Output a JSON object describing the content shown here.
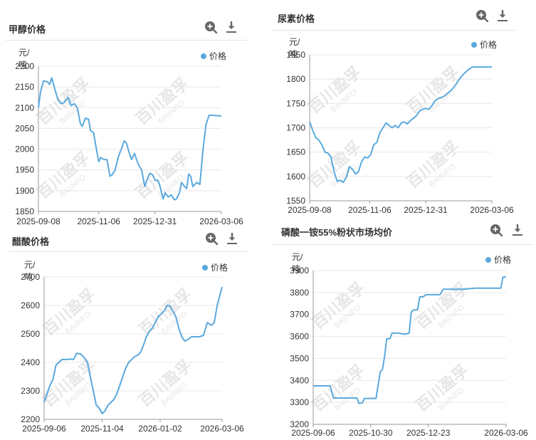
{
  "ui": {
    "icons": {
      "zoom": "magnifier-plus-icon",
      "download": "download-arrow-icon"
    },
    "colors": {
      "series": "#5aa9dd",
      "grid": "#e8e8e8",
      "axis": "#999999",
      "watermark": "#d6d6d6"
    },
    "watermark": {
      "cn": "百川盈孚",
      "en": "BAIINFO"
    }
  },
  "chart_data": [
    {
      "id": "methanol",
      "type": "line",
      "title": "甲醇价格",
      "unit": "元/吨",
      "legend": [
        "价格"
      ],
      "legend_position": "top-right",
      "grid": true,
      "ylim": [
        1850,
        2200
      ],
      "yticks": [
        1850,
        1900,
        1950,
        2000,
        2050,
        2100,
        2150,
        2200
      ],
      "xticks": [
        "2025-09-08",
        "2025-11-06",
        "2025-12-31",
        "2026-03-06"
      ],
      "x_range": [
        "2025-09-08",
        "2026-03-06"
      ],
      "series": [
        {
          "name": "价格",
          "points": [
            [
              "2025-09-08",
              2100
            ],
            [
              "2025-09-10",
              2138
            ],
            [
              "2025-09-13",
              2165
            ],
            [
              "2025-09-17",
              2162
            ],
            [
              "2025-09-19",
              2156
            ],
            [
              "2025-09-21",
              2172
            ],
            [
              "2025-09-24",
              2145
            ],
            [
              "2025-09-27",
              2120
            ],
            [
              "2025-09-30",
              2110
            ],
            [
              "2025-10-03",
              2112
            ],
            [
              "2025-10-07",
              2125
            ],
            [
              "2025-10-10",
              2105
            ],
            [
              "2025-10-13",
              2110
            ],
            [
              "2025-10-16",
              2100
            ],
            [
              "2025-10-19",
              2062
            ],
            [
              "2025-10-21",
              2055
            ],
            [
              "2025-10-24",
              2075
            ],
            [
              "2025-10-27",
              2072
            ],
            [
              "2025-10-29",
              2045
            ],
            [
              "2025-11-01",
              2040
            ],
            [
              "2025-11-03",
              2010
            ],
            [
              "2025-11-06",
              1970
            ],
            [
              "2025-11-08",
              1980
            ],
            [
              "2025-11-11",
              1975
            ],
            [
              "2025-11-14",
              1975
            ],
            [
              "2025-11-17",
              1935
            ],
            [
              "2025-11-19",
              1938
            ],
            [
              "2025-11-22",
              1950
            ],
            [
              "2025-11-25",
              1980
            ],
            [
              "2025-11-28",
              2000
            ],
            [
              "2025-12-01",
              2020
            ],
            [
              "2025-12-03",
              2015
            ],
            [
              "2025-12-06",
              1990
            ],
            [
              "2025-12-08",
              1975
            ],
            [
              "2025-12-11",
              1990
            ],
            [
              "2025-12-13",
              1975
            ],
            [
              "2025-12-15",
              1962
            ],
            [
              "2025-12-18",
              1950
            ],
            [
              "2025-12-21",
              1910
            ],
            [
              "2025-12-23",
              1925
            ],
            [
              "2025-12-26",
              1942
            ],
            [
              "2025-12-29",
              1938
            ],
            [
              "2025-12-31",
              1925
            ],
            [
              "2026-01-03",
              1925
            ],
            [
              "2026-01-05",
              1910
            ],
            [
              "2026-01-08",
              1880
            ],
            [
              "2026-01-10",
              1895
            ],
            [
              "2026-01-13",
              1885
            ],
            [
              "2026-01-16",
              1890
            ],
            [
              "2026-01-19",
              1878
            ],
            [
              "2026-01-21",
              1880
            ],
            [
              "2026-01-24",
              1895
            ],
            [
              "2026-01-26",
              1920
            ],
            [
              "2026-01-29",
              1910
            ],
            [
              "2026-01-31",
              1905
            ],
            [
              "2026-02-02",
              1940
            ],
            [
              "2026-02-04",
              1935
            ],
            [
              "2026-02-06",
              1910
            ],
            [
              "2026-02-10",
              1920
            ],
            [
              "2026-02-13",
              1915
            ],
            [
              "2026-02-16",
              2000
            ],
            [
              "2026-02-19",
              2060
            ],
            [
              "2026-02-22",
              2082
            ],
            [
              "2026-03-06",
              2080
            ]
          ]
        }
      ]
    },
    {
      "id": "urea",
      "type": "line",
      "title": "尿素价格",
      "unit": "元/吨",
      "legend": [
        "价格"
      ],
      "legend_position": "top-right",
      "grid": true,
      "ylim": [
        1550,
        1850
      ],
      "yticks": [
        1550,
        1600,
        1650,
        1700,
        1750,
        1800,
        1850
      ],
      "xticks": [
        "2025-09-08",
        "2025-11-06",
        "2025-12-31",
        "2026-03-06"
      ],
      "x_range": [
        "2025-09-08",
        "2026-03-06"
      ],
      "series": [
        {
          "name": "价格",
          "points": [
            [
              "2025-09-08",
              1712
            ],
            [
              "2025-09-11",
              1695
            ],
            [
              "2025-09-14",
              1680
            ],
            [
              "2025-09-17",
              1675
            ],
            [
              "2025-09-20",
              1665
            ],
            [
              "2025-09-23",
              1650
            ],
            [
              "2025-09-26",
              1648
            ],
            [
              "2025-09-29",
              1640
            ],
            [
              "2025-10-02",
              1610
            ],
            [
              "2025-10-05",
              1590
            ],
            [
              "2025-10-08",
              1592
            ],
            [
              "2025-10-11",
              1588
            ],
            [
              "2025-10-14",
              1598
            ],
            [
              "2025-10-17",
              1620
            ],
            [
              "2025-10-20",
              1615
            ],
            [
              "2025-10-23",
              1605
            ],
            [
              "2025-10-26",
              1610
            ],
            [
              "2025-10-29",
              1630
            ],
            [
              "2025-11-01",
              1640
            ],
            [
              "2025-11-04",
              1638
            ],
            [
              "2025-11-07",
              1645
            ],
            [
              "2025-11-10",
              1665
            ],
            [
              "2025-11-13",
              1670
            ],
            [
              "2025-11-16",
              1690
            ],
            [
              "2025-11-19",
              1700
            ],
            [
              "2025-11-22",
              1710
            ],
            [
              "2025-11-25",
              1705
            ],
            [
              "2025-11-28",
              1700
            ],
            [
              "2025-12-01",
              1705
            ],
            [
              "2025-12-04",
              1700
            ],
            [
              "2025-12-07",
              1710
            ],
            [
              "2025-12-10",
              1712
            ],
            [
              "2025-12-13",
              1708
            ],
            [
              "2025-12-16",
              1715
            ],
            [
              "2025-12-19",
              1720
            ],
            [
              "2025-12-22",
              1725
            ],
            [
              "2025-12-25",
              1735
            ],
            [
              "2025-12-28",
              1738
            ],
            [
              "2025-12-31",
              1740
            ],
            [
              "2026-01-03",
              1738
            ],
            [
              "2026-01-06",
              1745
            ],
            [
              "2026-01-09",
              1755
            ],
            [
              "2026-01-12",
              1760
            ],
            [
              "2026-01-15",
              1762
            ],
            [
              "2026-01-18",
              1765
            ],
            [
              "2026-01-21",
              1770
            ],
            [
              "2026-01-24",
              1775
            ],
            [
              "2026-01-27",
              1782
            ],
            [
              "2026-01-30",
              1790
            ],
            [
              "2026-02-02",
              1800
            ],
            [
              "2026-02-06",
              1810
            ],
            [
              "2026-02-10",
              1818
            ],
            [
              "2026-02-15",
              1825
            ],
            [
              "2026-02-20",
              1825
            ],
            [
              "2026-02-25",
              1825
            ],
            [
              "2026-03-06",
              1825
            ]
          ]
        }
      ]
    },
    {
      "id": "acetic_acid",
      "type": "line",
      "title": "醋酸价格",
      "unit": "元/吨",
      "legend": [
        "价格"
      ],
      "legend_position": "top-right",
      "grid": true,
      "ylim": [
        2200,
        2700
      ],
      "yticks": [
        2200,
        2300,
        2400,
        2500,
        2600,
        2700
      ],
      "xticks": [
        "2025-09-06",
        "2025-11-04",
        "2026-01-02",
        "2026-03-06"
      ],
      "x_range": [
        "2025-09-06",
        "2026-03-06"
      ],
      "series": [
        {
          "name": "价格",
          "points": [
            [
              "2025-09-06",
              2260
            ],
            [
              "2025-09-09",
              2290
            ],
            [
              "2025-09-12",
              2320
            ],
            [
              "2025-09-15",
              2340
            ],
            [
              "2025-09-18",
              2390
            ],
            [
              "2025-09-21",
              2400
            ],
            [
              "2025-09-24",
              2410
            ],
            [
              "2025-09-28",
              2410
            ],
            [
              "2025-10-02",
              2412
            ],
            [
              "2025-10-06",
              2410
            ],
            [
              "2025-10-09",
              2432
            ],
            [
              "2025-10-13",
              2430
            ],
            [
              "2025-10-16",
              2420
            ],
            [
              "2025-10-20",
              2400
            ],
            [
              "2025-10-23",
              2350
            ],
            [
              "2025-10-26",
              2300
            ],
            [
              "2025-10-29",
              2250
            ],
            [
              "2025-11-01",
              2240
            ],
            [
              "2025-11-04",
              2220
            ],
            [
              "2025-11-07",
              2230
            ],
            [
              "2025-11-10",
              2250
            ],
            [
              "2025-11-13",
              2260
            ],
            [
              "2025-11-16",
              2270
            ],
            [
              "2025-11-19",
              2290
            ],
            [
              "2025-11-22",
              2320
            ],
            [
              "2025-11-25",
              2350
            ],
            [
              "2025-11-28",
              2380
            ],
            [
              "2025-12-01",
              2400
            ],
            [
              "2025-12-04",
              2410
            ],
            [
              "2025-12-07",
              2420
            ],
            [
              "2025-12-10",
              2425
            ],
            [
              "2025-12-13",
              2435
            ],
            [
              "2025-12-16",
              2460
            ],
            [
              "2025-12-19",
              2490
            ],
            [
              "2025-12-22",
              2510
            ],
            [
              "2025-12-25",
              2520
            ],
            [
              "2025-12-28",
              2540
            ],
            [
              "2025-12-31",
              2560
            ],
            [
              "2026-01-03",
              2570
            ],
            [
              "2026-01-06",
              2580
            ],
            [
              "2026-01-09",
              2600
            ],
            [
              "2026-01-12",
              2598
            ],
            [
              "2026-01-15",
              2580
            ],
            [
              "2026-01-18",
              2560
            ],
            [
              "2026-01-21",
              2520
            ],
            [
              "2026-01-24",
              2490
            ],
            [
              "2026-01-27",
              2475
            ],
            [
              "2026-01-30",
              2480
            ],
            [
              "2026-02-03",
              2490
            ],
            [
              "2026-02-07",
              2490
            ],
            [
              "2026-02-11",
              2490
            ],
            [
              "2026-02-15",
              2495
            ],
            [
              "2026-02-19",
              2540
            ],
            [
              "2026-02-23",
              2530
            ],
            [
              "2026-02-26",
              2540
            ],
            [
              "2026-03-01",
              2600
            ],
            [
              "2026-03-06",
              2665
            ]
          ]
        }
      ]
    },
    {
      "id": "map55",
      "type": "line",
      "title": "磷酸一铵55%粉状市场均价",
      "unit": "元/吨",
      "legend": [
        "价格"
      ],
      "legend_position": "top-right",
      "grid": true,
      "ylim": [
        3200,
        3900
      ],
      "yticks": [
        3200,
        3300,
        3400,
        3500,
        3600,
        3700,
        3800,
        3900
      ],
      "xticks": [
        "2025-09-06",
        "2025-10-30",
        "2025-12-23",
        "2026-03-06"
      ],
      "x_range": [
        "2025-09-06",
        "2026-03-06"
      ],
      "series": [
        {
          "name": "价格",
          "points": [
            [
              "2025-09-06",
              3375
            ],
            [
              "2025-09-16",
              3375
            ],
            [
              "2025-09-22",
              3375
            ],
            [
              "2025-09-25",
              3320
            ],
            [
              "2025-10-02",
              3320
            ],
            [
              "2025-10-10",
              3320
            ],
            [
              "2025-10-17",
              3320
            ],
            [
              "2025-10-19",
              3295
            ],
            [
              "2025-10-22",
              3298
            ],
            [
              "2025-10-24",
              3318
            ],
            [
              "2025-10-30",
              3318
            ],
            [
              "2025-11-04",
              3318
            ],
            [
              "2025-11-06",
              3380
            ],
            [
              "2025-11-08",
              3440
            ],
            [
              "2025-11-10",
              3450
            ],
            [
              "2025-11-12",
              3510
            ],
            [
              "2025-11-14",
              3590
            ],
            [
              "2025-11-17",
              3590
            ],
            [
              "2025-11-19",
              3615
            ],
            [
              "2025-11-25",
              3615
            ],
            [
              "2025-12-01",
              3610
            ],
            [
              "2025-12-05",
              3615
            ],
            [
              "2025-12-07",
              3710
            ],
            [
              "2025-12-09",
              3720
            ],
            [
              "2025-12-13",
              3722
            ],
            [
              "2025-12-15",
              3780
            ],
            [
              "2025-12-18",
              3780
            ],
            [
              "2025-12-21",
              3790
            ],
            [
              "2025-12-27",
              3790
            ],
            [
              "2026-01-03",
              3790
            ],
            [
              "2026-01-06",
              3815
            ],
            [
              "2026-01-15",
              3815
            ],
            [
              "2026-01-25",
              3815
            ],
            [
              "2026-02-05",
              3820
            ],
            [
              "2026-02-15",
              3820
            ],
            [
              "2026-02-25",
              3820
            ],
            [
              "2026-03-01",
              3820
            ],
            [
              "2026-03-03",
              3870
            ],
            [
              "2026-03-06",
              3870
            ]
          ]
        }
      ]
    }
  ]
}
